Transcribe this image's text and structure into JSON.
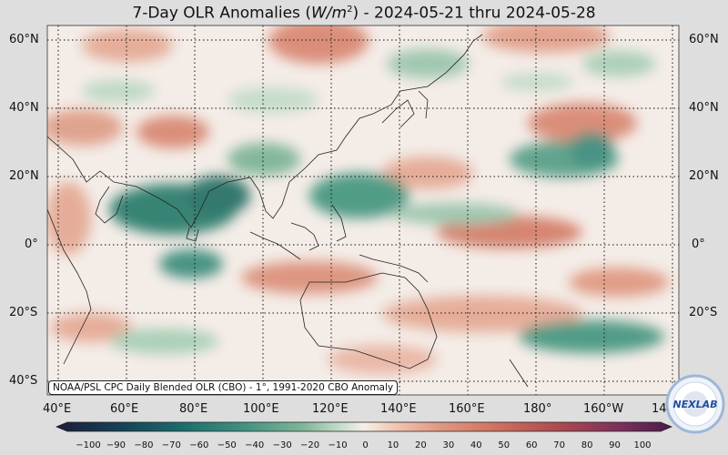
{
  "title": {
    "prefix": "7-Day OLR Anomalies (",
    "unit_base": "W/m",
    "unit_exp": "2",
    "suffix": ") - 2024-05-21 thru 2024-05-28"
  },
  "axes": {
    "lat_labels_left": [
      "60°N",
      "40°N",
      "20°N",
      "0°",
      "20°S",
      "40°S"
    ],
    "lat_labels_right": [
      "60°N",
      "40°N",
      "20°N",
      "0°",
      "20°S"
    ],
    "lon_labels": [
      "40°E",
      "60°E",
      "80°E",
      "100°E",
      "120°E",
      "140°E",
      "160°E",
      "180°",
      "160°W",
      "14"
    ]
  },
  "credit": "NOAA/PSL CPC Daily Blended OLR (CBO) - 1°, 1991-2020 CBO Anomaly",
  "colorbar": {
    "ticks": [
      "−100",
      "−90",
      "−80",
      "−70",
      "−60",
      "−50",
      "−40",
      "−30",
      "−20",
      "−10",
      "0",
      "10",
      "20",
      "30",
      "40",
      "50",
      "60",
      "70",
      "80",
      "90",
      "100"
    ],
    "min": -100,
    "max": 100,
    "colors": [
      "#1c1c3a",
      "#163f55",
      "#1b6b6b",
      "#3f8f7f",
      "#7fb597",
      "#bfd9c4",
      "#f7efe8",
      "#f1c6b3",
      "#e09a82",
      "#cd6f5d",
      "#a94950",
      "#7a2f5c",
      "#4a1a4a"
    ]
  },
  "logo": {
    "text": "NEXLAB",
    "ring_color": "#9fb6d8",
    "text_color": "#1f4fa3"
  },
  "colors": {
    "positive": "#d98a75",
    "negative": "#2f7f6e",
    "background": "#dedede",
    "ocean": "#f4ece7"
  }
}
